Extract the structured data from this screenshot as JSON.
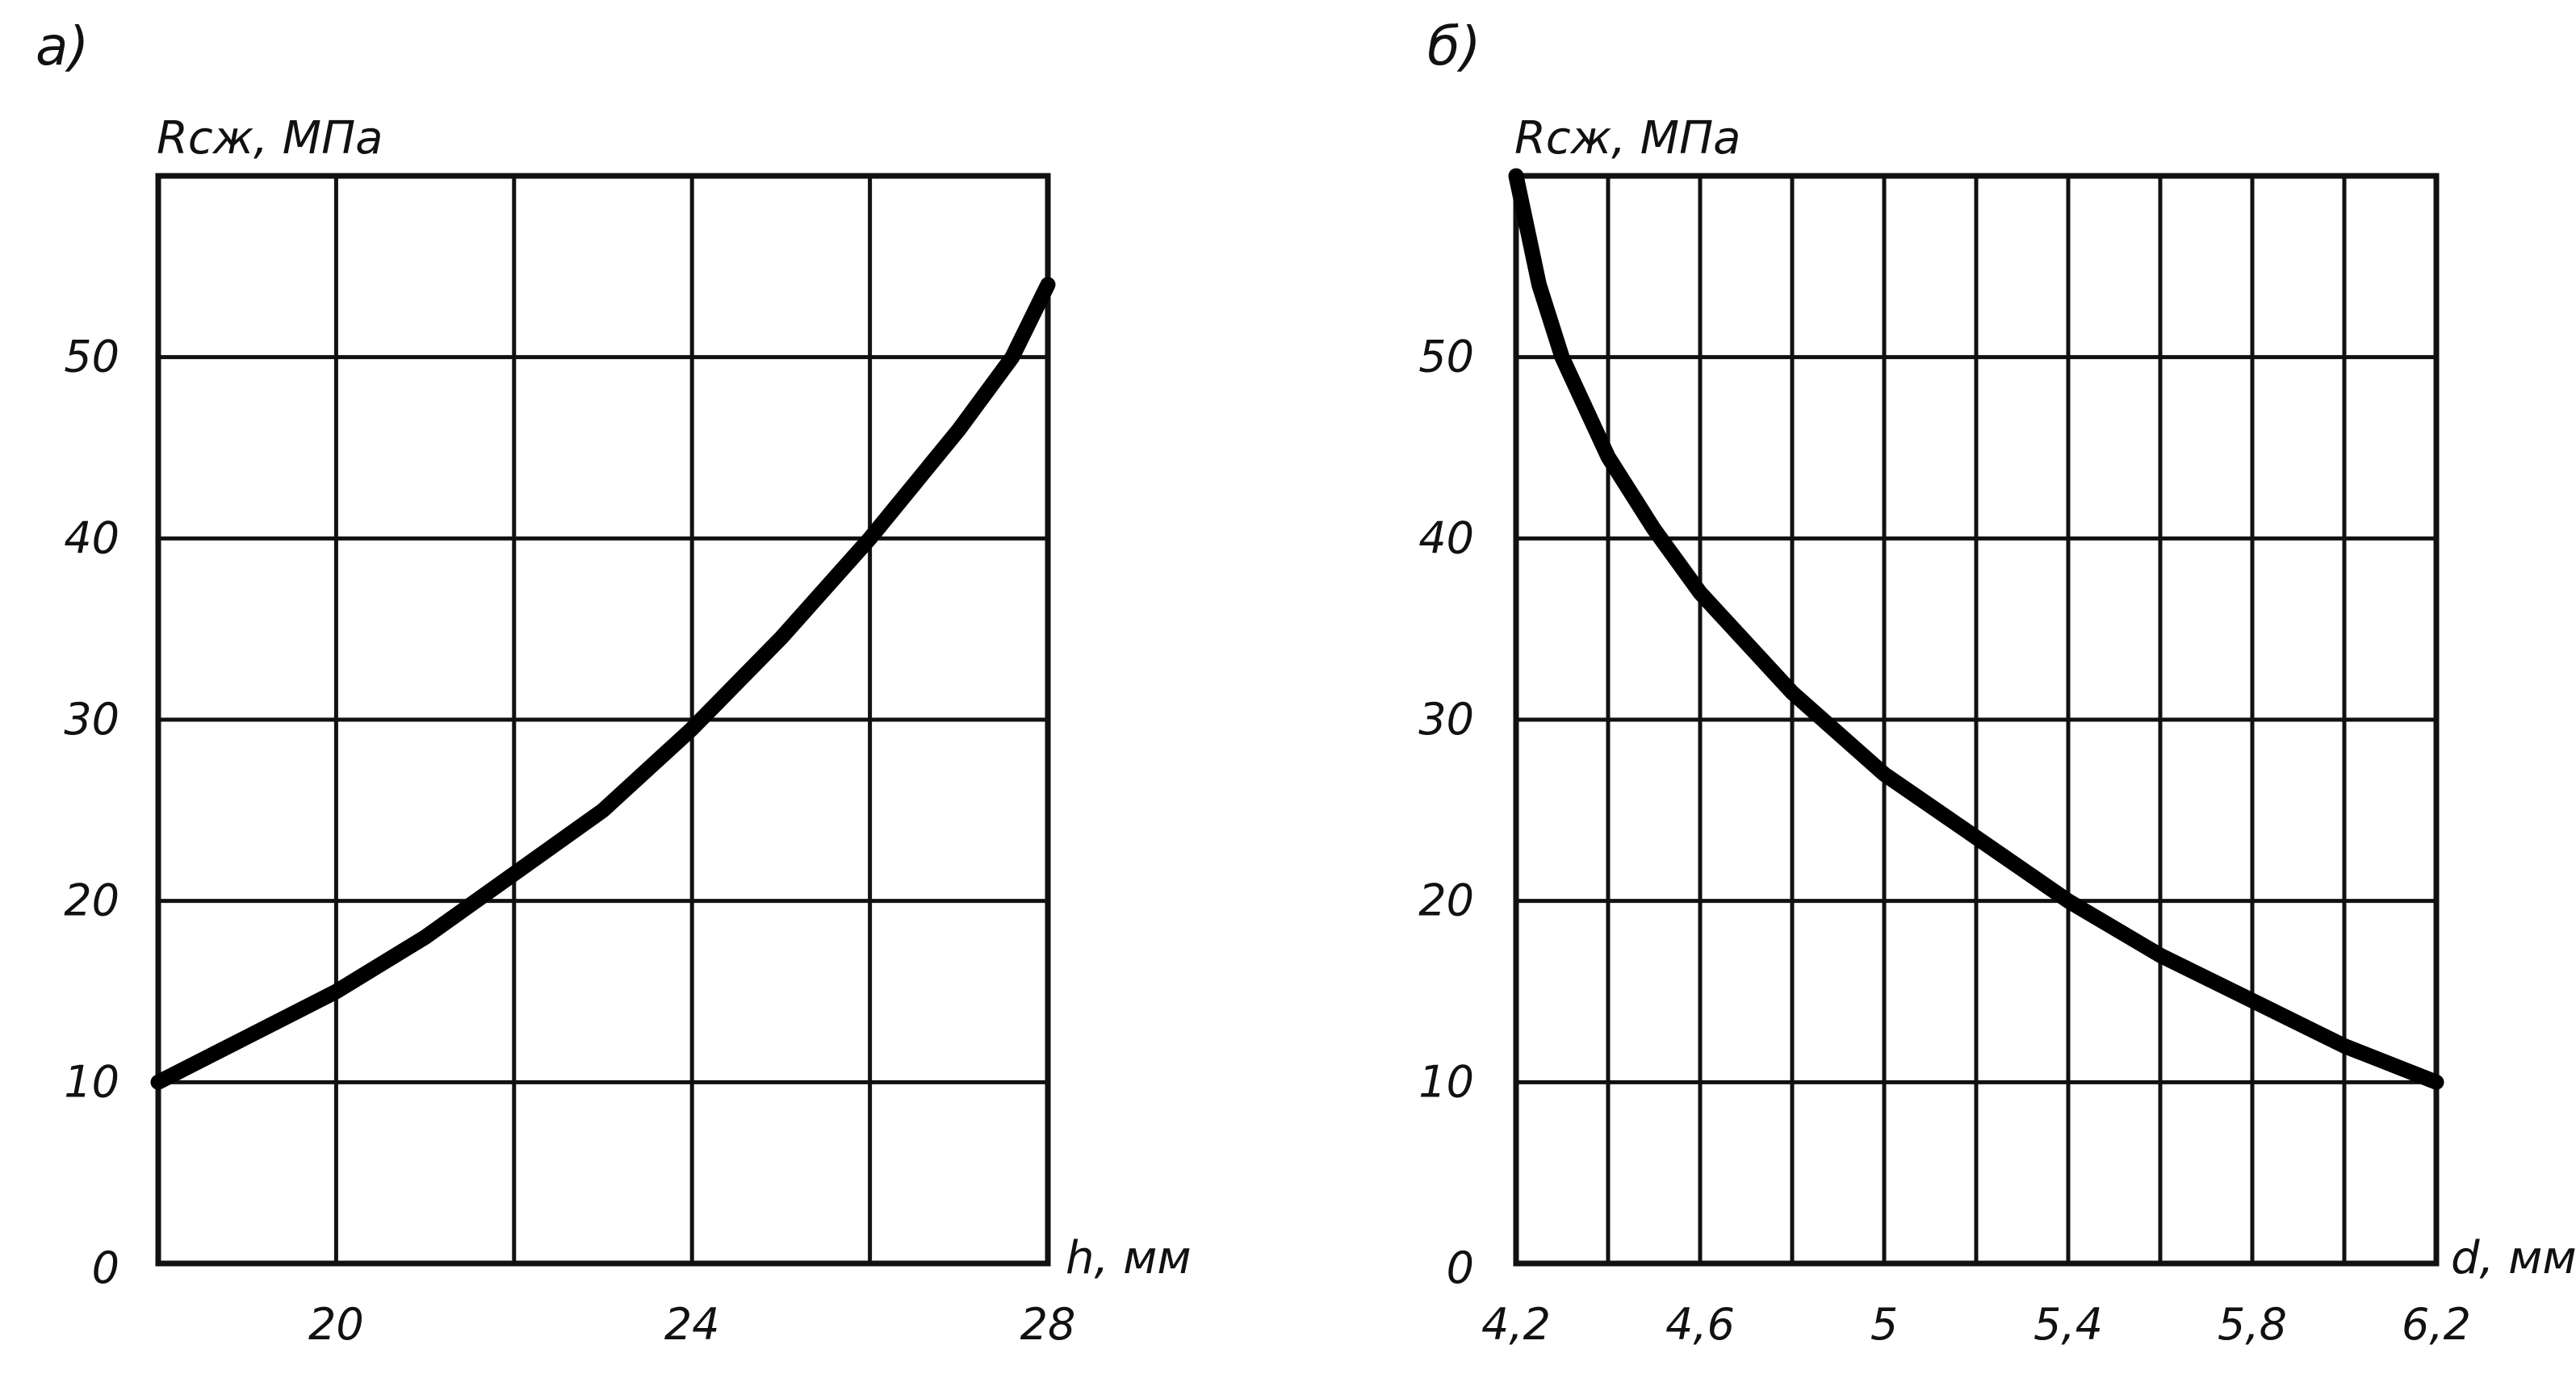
{
  "colors": {
    "background": "#ffffff",
    "ink": "#111111",
    "curve": "#000000"
  },
  "chart_data": [
    {
      "type": "line",
      "panel_label": "а)",
      "ylabel": "Rсж, МПа",
      "xlabel": "h, мм",
      "xlim": [
        18,
        28
      ],
      "ylim": [
        0,
        60
      ],
      "x_ticks": [
        20,
        24,
        28
      ],
      "x_tick_labels": [
        "20",
        "24",
        "28"
      ],
      "x_grid": [
        20,
        22,
        24,
        26,
        28
      ],
      "y_ticks": [
        0,
        10,
        20,
        30,
        40,
        50
      ],
      "y_tick_labels": [
        "0",
        "10",
        "20",
        "30",
        "40",
        "50"
      ],
      "y_grid": [
        10,
        20,
        30,
        40,
        50
      ],
      "grid": true,
      "series": [
        {
          "x": [
            18.0,
            19.0,
            20.0,
            21.0,
            22.0,
            23.0,
            24.0,
            25.0,
            26.0,
            27.0,
            27.6,
            28.0
          ],
          "y": [
            10.0,
            12.5,
            15.0,
            18.0,
            21.5,
            25.0,
            29.5,
            34.5,
            40.0,
            46.0,
            50.0,
            54.0
          ]
        }
      ]
    },
    {
      "type": "line",
      "panel_label": "б)",
      "ylabel": "Rсж, МПа",
      "xlabel": "d, мм",
      "xlim": [
        4.2,
        6.2
      ],
      "ylim": [
        0,
        60
      ],
      "x_ticks": [
        4.2,
        4.6,
        5.0,
        5.4,
        5.8,
        6.2
      ],
      "x_tick_labels": [
        "4,2",
        "4,6",
        "5",
        "5,4",
        "5,8",
        "6,2"
      ],
      "x_grid": [
        4.4,
        4.6,
        4.8,
        5.0,
        5.2,
        5.4,
        5.6,
        5.8,
        6.0
      ],
      "y_ticks": [
        0,
        10,
        20,
        30,
        40,
        50
      ],
      "y_tick_labels": [
        "0",
        "10",
        "20",
        "30",
        "40",
        "50"
      ],
      "y_grid": [
        10,
        20,
        30,
        40,
        50
      ],
      "grid": true,
      "series": [
        {
          "x": [
            4.2,
            4.25,
            4.3,
            4.4,
            4.5,
            4.6,
            4.8,
            5.0,
            5.2,
            5.4,
            5.6,
            5.8,
            6.0,
            6.2
          ],
          "y": [
            60.0,
            54.0,
            50.0,
            44.5,
            40.5,
            37.0,
            31.5,
            27.0,
            23.5,
            20.0,
            17.0,
            14.5,
            12.0,
            10.0
          ]
        }
      ]
    }
  ]
}
